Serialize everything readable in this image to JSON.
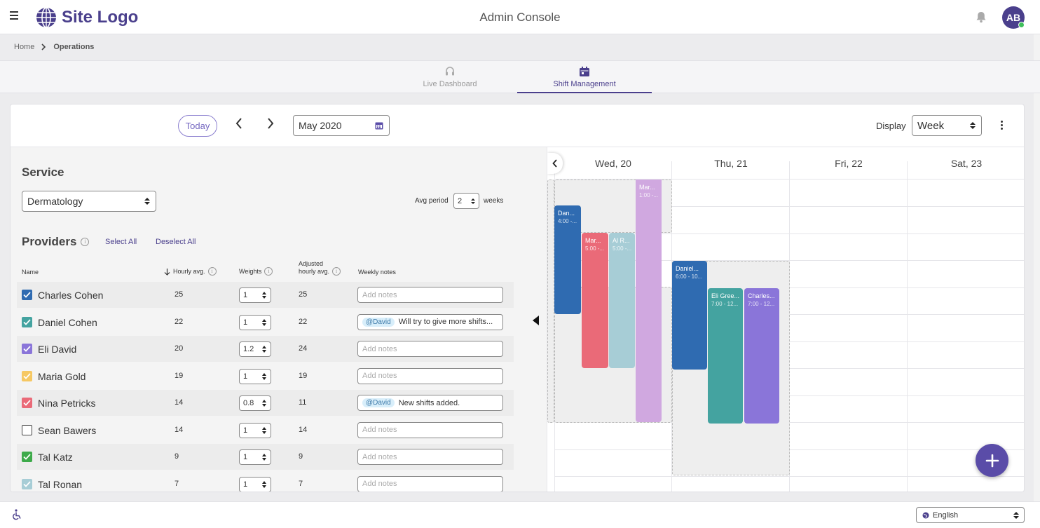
{
  "header": {
    "logo_text": "Site Logo",
    "title": "Admin Console",
    "avatar_initials": "AB"
  },
  "breadcrumb": {
    "home": "Home",
    "current": "Operations"
  },
  "tabs": [
    {
      "label": "Live Dashboard",
      "active": false
    },
    {
      "label": "Shift Management",
      "active": true
    }
  ],
  "toolbar": {
    "today_label": "Today",
    "month": "May 2020",
    "display_label": "Display",
    "display_value": "Week"
  },
  "service": {
    "title": "Service",
    "selected": "Dermatology",
    "avg_label": "Avg period",
    "avg_value": "2",
    "weeks_label": "weeks"
  },
  "providers": {
    "title": "Providers",
    "select_all": "Select All",
    "deselect_all": "Deselect All",
    "columns": {
      "name": "Name",
      "hourly": "Hourly avg.",
      "weights": "Weights",
      "adjusted_line1": "Adjusted",
      "adjusted_line2": "hourly avg.",
      "notes": "Weekly notes"
    },
    "rows": [
      {
        "name": "Charles Cohen",
        "hourly": "25",
        "weight": "1",
        "adjusted": "25",
        "note": "Add notes",
        "mention": "",
        "checked": true,
        "color": "#2f6bb1"
      },
      {
        "name": "Daniel Cohen",
        "hourly": "22",
        "weight": "1",
        "adjusted": "22",
        "note": "Will try to give more shifts...",
        "mention": "@David",
        "checked": true,
        "color": "#44a3a0"
      },
      {
        "name": "Eli David",
        "hourly": "20",
        "weight": "1.2",
        "adjusted": "24",
        "note": "Add notes",
        "mention": "",
        "checked": true,
        "color": "#8a75d9"
      },
      {
        "name": "Maria Gold",
        "hourly": "19",
        "weight": "1",
        "adjusted": "19",
        "note": "Add notes",
        "mention": "",
        "checked": true,
        "color": "#f6c863"
      },
      {
        "name": "Nina Petricks",
        "hourly": "14",
        "weight": "0.8",
        "adjusted": "11",
        "note": "New shifts added.",
        "mention": "@David",
        "checked": true,
        "color": "#ea6a78"
      },
      {
        "name": "Sean Bawers",
        "hourly": "14",
        "weight": "1",
        "adjusted": "14",
        "note": "Add notes",
        "mention": "",
        "checked": false,
        "color": "#ffffff"
      },
      {
        "name": "Tal Katz",
        "hourly": "9",
        "weight": "1",
        "adjusted": "9",
        "note": "Add notes",
        "mention": "",
        "checked": true,
        "color": "#3daa4a"
      },
      {
        "name": "Tal Ronan",
        "hourly": "7",
        "weight": "1",
        "adjusted": "7",
        "note": "Add notes",
        "mention": "",
        "checked": true,
        "color": "#a7cdd6"
      }
    ]
  },
  "calendar": {
    "days": [
      "Wed, 20",
      "Thu, 21",
      "Fri, 22",
      "Sat, 23"
    ],
    "events": [
      {
        "name": "Dan...",
        "time": "4:00 -...",
        "color": "#2f6bb1"
      },
      {
        "name": "Mar...",
        "time": "5:00 -...",
        "color": "#ea6a78"
      },
      {
        "name": "Al R...",
        "time": "5:00 -...",
        "color": "#a7cdd6"
      },
      {
        "name": "Mar...",
        "time": "1:00 -...",
        "color": "#d0a8e0"
      },
      {
        "name": "Daniel...",
        "time": "6:00 - 10...",
        "color": "#2f6bb1"
      },
      {
        "name": "Eli Gree...",
        "time": "7:00 - 12...",
        "color": "#44a3a0"
      },
      {
        "name": "Charles...",
        "time": "7:00 - 12...",
        "color": "#8a75d9"
      }
    ]
  },
  "footer": {
    "language": "English"
  }
}
